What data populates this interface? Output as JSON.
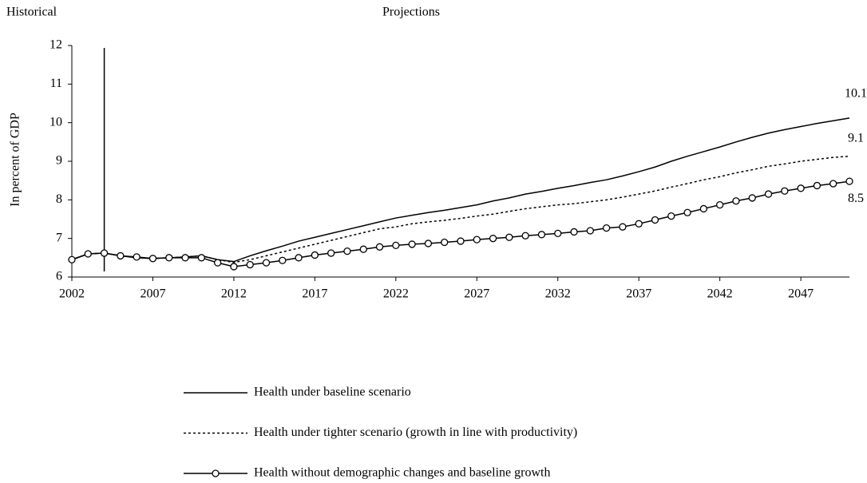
{
  "chart_data": {
    "type": "line",
    "period_labels": [
      "Historical",
      "Projections"
    ],
    "divider": 2004,
    "y_label": "In percent of GDP",
    "x": [
      2002,
      2003,
      2004,
      2005,
      2006,
      2007,
      2008,
      2009,
      2010,
      2011,
      2012,
      2013,
      2014,
      2015,
      2016,
      2017,
      2018,
      2019,
      2020,
      2021,
      2022,
      2023,
      2024,
      2025,
      2026,
      2027,
      2028,
      2029,
      2030,
      2031,
      2032,
      2033,
      2034,
      2035,
      2036,
      2037,
      2038,
      2039,
      2040,
      2041,
      2042,
      2043,
      2044,
      2045,
      2046,
      2047,
      2048,
      2049,
      2050
    ],
    "xlim": [
      2002,
      2050
    ],
    "xticks": [
      2002,
      2007,
      2012,
      2017,
      2022,
      2027,
      2032,
      2037,
      2042,
      2047
    ],
    "ylim": [
      6,
      12
    ],
    "yticks": [
      6,
      7,
      8,
      9,
      10,
      11,
      12
    ],
    "series": [
      {
        "name": "Health under baseline scenario",
        "color": "#000000",
        "dash": "none",
        "marker": false,
        "values": [
          6.45,
          6.6,
          6.62,
          6.55,
          6.5,
          6.48,
          6.5,
          6.52,
          6.55,
          6.45,
          6.4,
          6.55,
          6.68,
          6.8,
          6.93,
          7.03,
          7.13,
          7.23,
          7.33,
          7.43,
          7.53,
          7.6,
          7.67,
          7.73,
          7.8,
          7.87,
          7.97,
          8.05,
          8.15,
          8.22,
          8.3,
          8.37,
          8.45,
          8.52,
          8.62,
          8.73,
          8.85,
          9.0,
          9.13,
          9.25,
          9.37,
          9.5,
          9.62,
          9.73,
          9.82,
          9.9,
          9.98,
          10.05,
          10.12
        ],
        "value_labels": [
          null,
          null,
          null,
          null,
          null,
          null,
          null,
          null,
          null,
          null,
          null,
          null,
          null,
          null,
          null,
          null,
          null,
          null,
          null,
          null,
          null,
          null,
          null,
          null,
          null,
          null,
          null,
          null,
          null,
          null,
          null,
          null,
          null,
          null,
          null,
          null,
          null,
          null,
          null,
          null,
          null,
          null,
          null,
          null,
          null,
          null,
          null,
          null,
          "10.1"
        ]
      },
      {
        "name": "Health under tighter scenario (growth in line with productivity)",
        "color": "#000000",
        "dash": "3,3",
        "marker": false,
        "values": [
          6.45,
          6.6,
          6.62,
          6.55,
          6.5,
          6.48,
          6.5,
          6.52,
          6.55,
          6.45,
          6.38,
          6.45,
          6.55,
          6.65,
          6.75,
          6.85,
          6.95,
          7.05,
          7.15,
          7.25,
          7.3,
          7.38,
          7.43,
          7.47,
          7.52,
          7.58,
          7.63,
          7.7,
          7.77,
          7.82,
          7.87,
          7.9,
          7.95,
          8.0,
          8.07,
          8.15,
          8.23,
          8.33,
          8.42,
          8.52,
          8.6,
          8.7,
          8.78,
          8.87,
          8.93,
          9.0,
          9.05,
          9.1,
          9.13
        ],
        "value_labels": [
          null,
          null,
          null,
          null,
          null,
          null,
          null,
          null,
          null,
          null,
          null,
          null,
          null,
          null,
          null,
          null,
          null,
          null,
          null,
          null,
          null,
          null,
          null,
          null,
          null,
          null,
          null,
          null,
          null,
          null,
          null,
          null,
          null,
          null,
          null,
          null,
          null,
          null,
          null,
          null,
          null,
          null,
          null,
          null,
          null,
          null,
          null,
          null,
          "9.1"
        ]
      },
      {
        "name": "Health without demographic changes and baseline growth",
        "color": "#000000",
        "dash": "none",
        "marker": true,
        "values": [
          6.45,
          6.6,
          6.62,
          6.55,
          6.52,
          6.48,
          6.5,
          6.5,
          6.5,
          6.37,
          6.27,
          6.32,
          6.37,
          6.43,
          6.5,
          6.57,
          6.62,
          6.67,
          6.72,
          6.78,
          6.82,
          6.85,
          6.87,
          6.9,
          6.93,
          6.97,
          7.0,
          7.03,
          7.07,
          7.1,
          7.13,
          7.17,
          7.2,
          7.27,
          7.3,
          7.38,
          7.48,
          7.58,
          7.67,
          7.77,
          7.87,
          7.97,
          8.05,
          8.15,
          8.23,
          8.3,
          8.37,
          8.42,
          8.48
        ],
        "value_labels": [
          null,
          null,
          null,
          null,
          null,
          null,
          null,
          null,
          null,
          null,
          null,
          null,
          null,
          null,
          null,
          null,
          null,
          null,
          null,
          null,
          null,
          null,
          null,
          null,
          null,
          null,
          null,
          null,
          null,
          null,
          null,
          null,
          null,
          null,
          null,
          null,
          null,
          null,
          null,
          null,
          null,
          null,
          null,
          null,
          null,
          null,
          null,
          null,
          "8.5"
        ]
      }
    ]
  }
}
